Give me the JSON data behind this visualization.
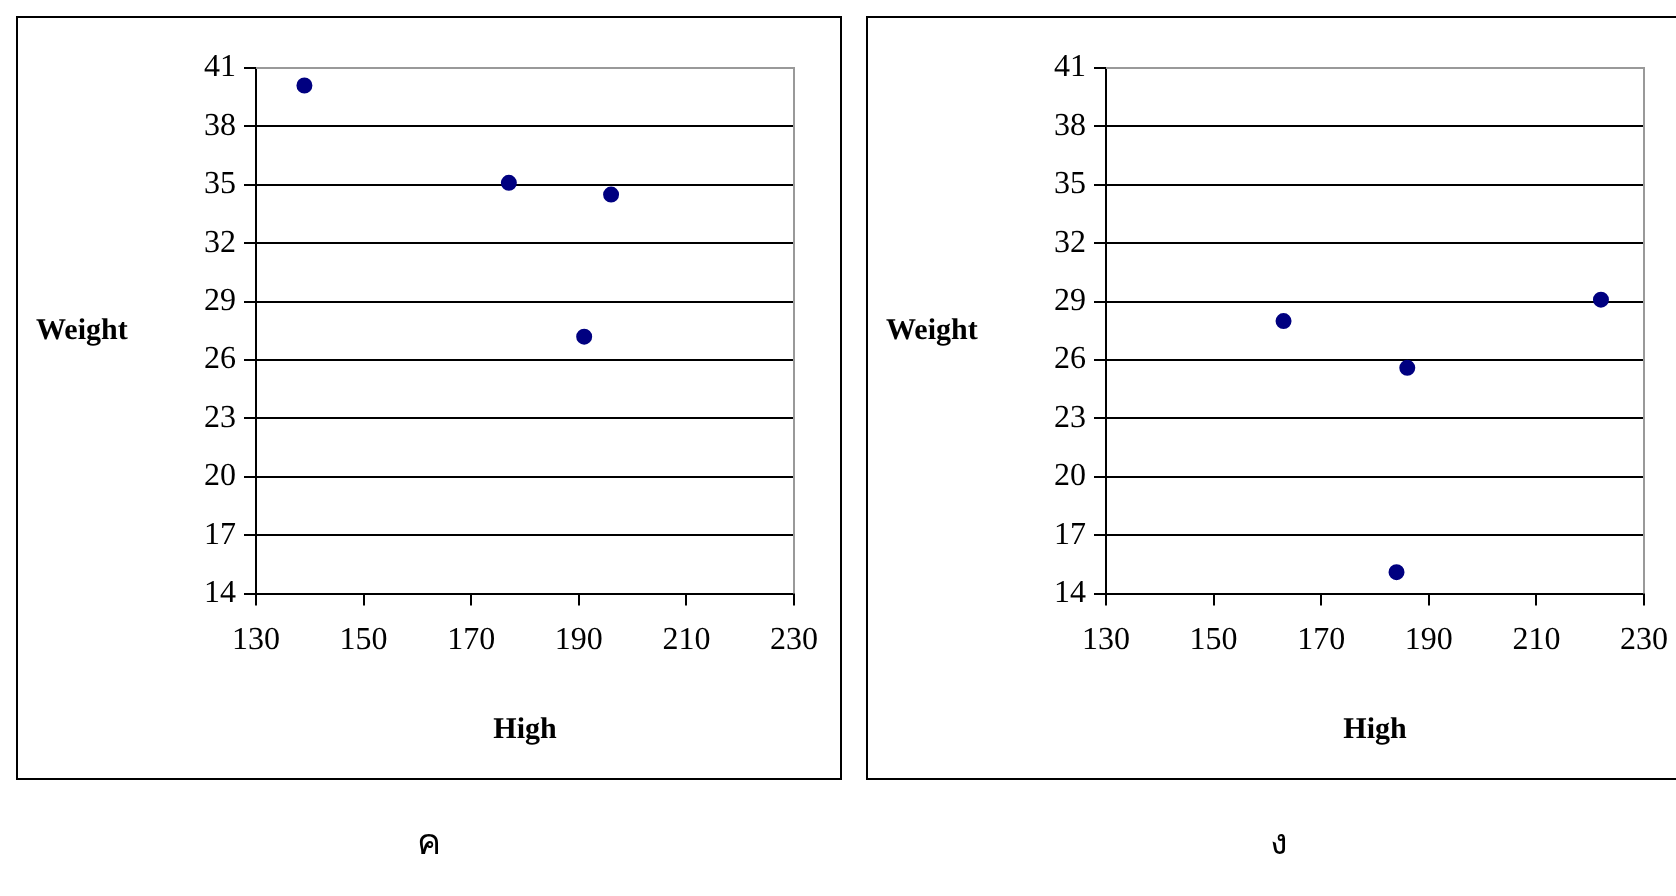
{
  "chart_data": [
    {
      "type": "scatter",
      "xlabel": "High",
      "ylabel": "Weight",
      "x": [
        139,
        177,
        196,
        191
      ],
      "values": [
        40.1,
        35.1,
        34.5,
        27.2
      ],
      "color": "#000080",
      "marker": "circle",
      "xlim": [
        130,
        230
      ],
      "xticks": [
        130,
        150,
        170,
        190,
        210,
        230
      ],
      "ylim": [
        14,
        41
      ],
      "yticks": [
        14,
        17,
        20,
        23,
        26,
        29,
        32,
        35,
        38,
        41
      ],
      "grid": "y",
      "legend": false,
      "annotations": [
        "ค"
      ]
    },
    {
      "type": "scatter",
      "xlabel": "High",
      "ylabel": "Weight",
      "x": [
        163,
        186,
        222,
        184
      ],
      "values": [
        28.0,
        25.6,
        29.1,
        15.1
      ],
      "color": "#000080",
      "marker": "circle",
      "xlim": [
        130,
        230
      ],
      "xticks": [
        130,
        150,
        170,
        190,
        210,
        230
      ],
      "ylim": [
        14,
        41
      ],
      "yticks": [
        14,
        17,
        20,
        23,
        26,
        29,
        32,
        35,
        38,
        41
      ],
      "grid": "y",
      "legend": false,
      "annotations": [
        "ง"
      ]
    }
  ]
}
